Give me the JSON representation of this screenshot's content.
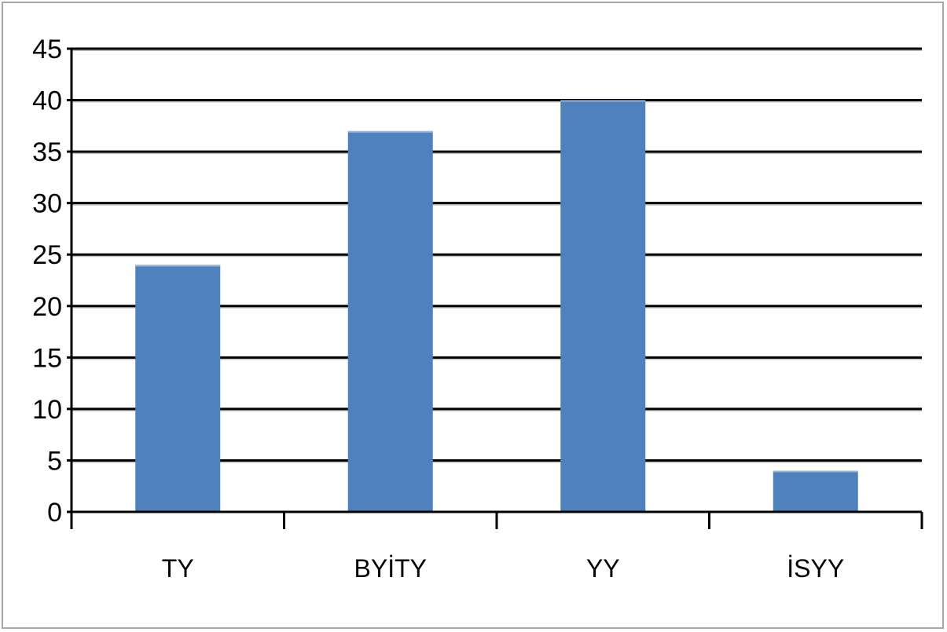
{
  "chart_data": {
    "type": "bar",
    "categories": [
      "TY",
      "BYİTY",
      "YY",
      "İSYY"
    ],
    "values": [
      24,
      37,
      40,
      4
    ],
    "ylim": [
      0,
      45
    ],
    "yticks": [
      0,
      5,
      10,
      15,
      20,
      25,
      30,
      35,
      40,
      45
    ],
    "grid": true,
    "legend": "none",
    "colors": {
      "bar": "#4f81bd",
      "grid": "#000000",
      "axis": "#000000"
    }
  }
}
